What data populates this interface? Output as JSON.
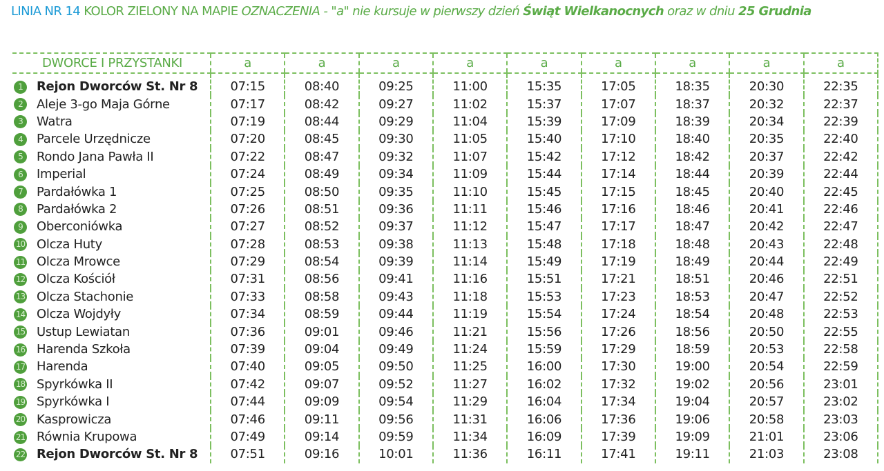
{
  "title": {
    "line": "LINIA NR 14",
    "color": "KOLOR ZIELONY NA MAPIE",
    "legend_label": "OZNACZENIA",
    "note_1": " - \"a\" nie kursuje w pierwszy dzień ",
    "holiday_1": "Świąt Wielkanocnych",
    "note_2": " oraz w dniu ",
    "holiday_2": "25 Grudnia"
  },
  "colors": {
    "blue": "#1b9ad6",
    "green": "#5aab47",
    "badge": "#4f9f3c"
  },
  "table": {
    "stop_header": "DWORCE I PRZYSTANKI",
    "column_marks": [
      "a",
      "a",
      "a",
      "a",
      "a",
      "a",
      "a",
      "a",
      "a"
    ],
    "rows": [
      {
        "num": "1",
        "stop": "Rejon Dworców St. Nr 8",
        "bold": true,
        "times": [
          "07:15",
          "08:40",
          "09:25",
          "11:00",
          "15:35",
          "17:05",
          "18:35",
          "20:30",
          "22:35"
        ]
      },
      {
        "num": "2",
        "stop": "Aleje 3-go Maja Górne",
        "times": [
          "07:17",
          "08:42",
          "09:27",
          "11:02",
          "15:37",
          "17:07",
          "18:37",
          "20:32",
          "22:37"
        ]
      },
      {
        "num": "3",
        "stop": "Watra",
        "times": [
          "07:19",
          "08:44",
          "09:29",
          "11:04",
          "15:39",
          "17:09",
          "18:39",
          "20:34",
          "22:39"
        ]
      },
      {
        "num": "4",
        "stop": "Parcele Urzędnicze",
        "times": [
          "07:20",
          "08:45",
          "09:30",
          "11:05",
          "15:40",
          "17:10",
          "18:40",
          "20:35",
          "22:40"
        ]
      },
      {
        "num": "5",
        "stop": "Rondo Jana Pawła II",
        "times": [
          "07:22",
          "08:47",
          "09:32",
          "11:07",
          "15:42",
          "17:12",
          "18:42",
          "20:37",
          "22:42"
        ]
      },
      {
        "num": "6",
        "stop": "Imperial",
        "times": [
          "07:24",
          "08:49",
          "09:34",
          "11:09",
          "15:44",
          "17:14",
          "18:44",
          "20:39",
          "22:44"
        ]
      },
      {
        "num": "7",
        "stop": "Pardałówka 1",
        "times": [
          "07:25",
          "08:50",
          "09:35",
          "11:10",
          "15:45",
          "17:15",
          "18:45",
          "20:40",
          "22:45"
        ]
      },
      {
        "num": "8",
        "stop": "Pardałówka 2",
        "times": [
          "07:26",
          "08:51",
          "09:36",
          "11:11",
          "15:46",
          "17:16",
          "18:46",
          "20:41",
          "22:46"
        ]
      },
      {
        "num": "9",
        "stop": "Oberconiówka",
        "times": [
          "07:27",
          "08:52",
          "09:37",
          "11:12",
          "15:47",
          "17:17",
          "18:47",
          "20:42",
          "22:47"
        ]
      },
      {
        "num": "10",
        "stop": "Olcza Huty",
        "times": [
          "07:28",
          "08:53",
          "09:38",
          "11:13",
          "15:48",
          "17:18",
          "18:48",
          "20:43",
          "22:48"
        ]
      },
      {
        "num": "11",
        "stop": "Olcza Mrowce",
        "times": [
          "07:29",
          "08:54",
          "09:39",
          "11:14",
          "15:49",
          "17:19",
          "18:49",
          "20:44",
          "22:49"
        ]
      },
      {
        "num": "12",
        "stop": "Olcza Kościół",
        "times": [
          "07:31",
          "08:56",
          "09:41",
          "11:16",
          "15:51",
          "17:21",
          "18:51",
          "20:46",
          "22:51"
        ]
      },
      {
        "num": "13",
        "stop": "Olcza Stachonie",
        "times": [
          "07:33",
          "08:58",
          "09:43",
          "11:18",
          "15:53",
          "17:23",
          "18:53",
          "20:47",
          "22:52"
        ]
      },
      {
        "num": "14",
        "stop": "Olcza Wojdyły",
        "times": [
          "07:34",
          "08:59",
          "09:44",
          "11:19",
          "15:54",
          "17:24",
          "18:54",
          "20:48",
          "22:53"
        ]
      },
      {
        "num": "15",
        "stop": "Ustup Lewiatan",
        "times": [
          "07:36",
          "09:01",
          "09:46",
          "11:21",
          "15:56",
          "17:26",
          "18:56",
          "20:50",
          "22:55"
        ]
      },
      {
        "num": "16",
        "stop": "Harenda Szkoła",
        "times": [
          "07:39",
          "09:04",
          "09:49",
          "11:24",
          "15:59",
          "17:29",
          "18:59",
          "20:53",
          "22:58"
        ]
      },
      {
        "num": "17",
        "stop": "Harenda",
        "times": [
          "07:40",
          "09:05",
          "09:50",
          "11:25",
          "16:00",
          "17:30",
          "19:00",
          "20:54",
          "22:59"
        ]
      },
      {
        "num": "18",
        "stop": "Spyrkówka II",
        "times": [
          "07:42",
          "09:07",
          "09:52",
          "11:27",
          "16:02",
          "17:32",
          "19:02",
          "20:56",
          "23:01"
        ]
      },
      {
        "num": "19",
        "stop": "Spyrkówka I",
        "times": [
          "07:44",
          "09:09",
          "09:54",
          "11:29",
          "16:04",
          "17:34",
          "19:04",
          "20:57",
          "23:02"
        ]
      },
      {
        "num": "20",
        "stop": "Kasprowicza",
        "times": [
          "07:46",
          "09:11",
          "09:56",
          "11:31",
          "16:06",
          "17:36",
          "19:06",
          "20:58",
          "23:03"
        ]
      },
      {
        "num": "21",
        "stop": "Równia Krupowa",
        "times": [
          "07:49",
          "09:14",
          "09:59",
          "11:34",
          "16:09",
          "17:39",
          "19:09",
          "21:01",
          "23:06"
        ]
      },
      {
        "num": "22",
        "stop": "Rejon Dworców St. Nr 8",
        "bold": true,
        "times": [
          "07:51",
          "09:16",
          "10:01",
          "11:36",
          "16:11",
          "17:41",
          "19:11",
          "21:03",
          "23:08"
        ]
      }
    ]
  }
}
